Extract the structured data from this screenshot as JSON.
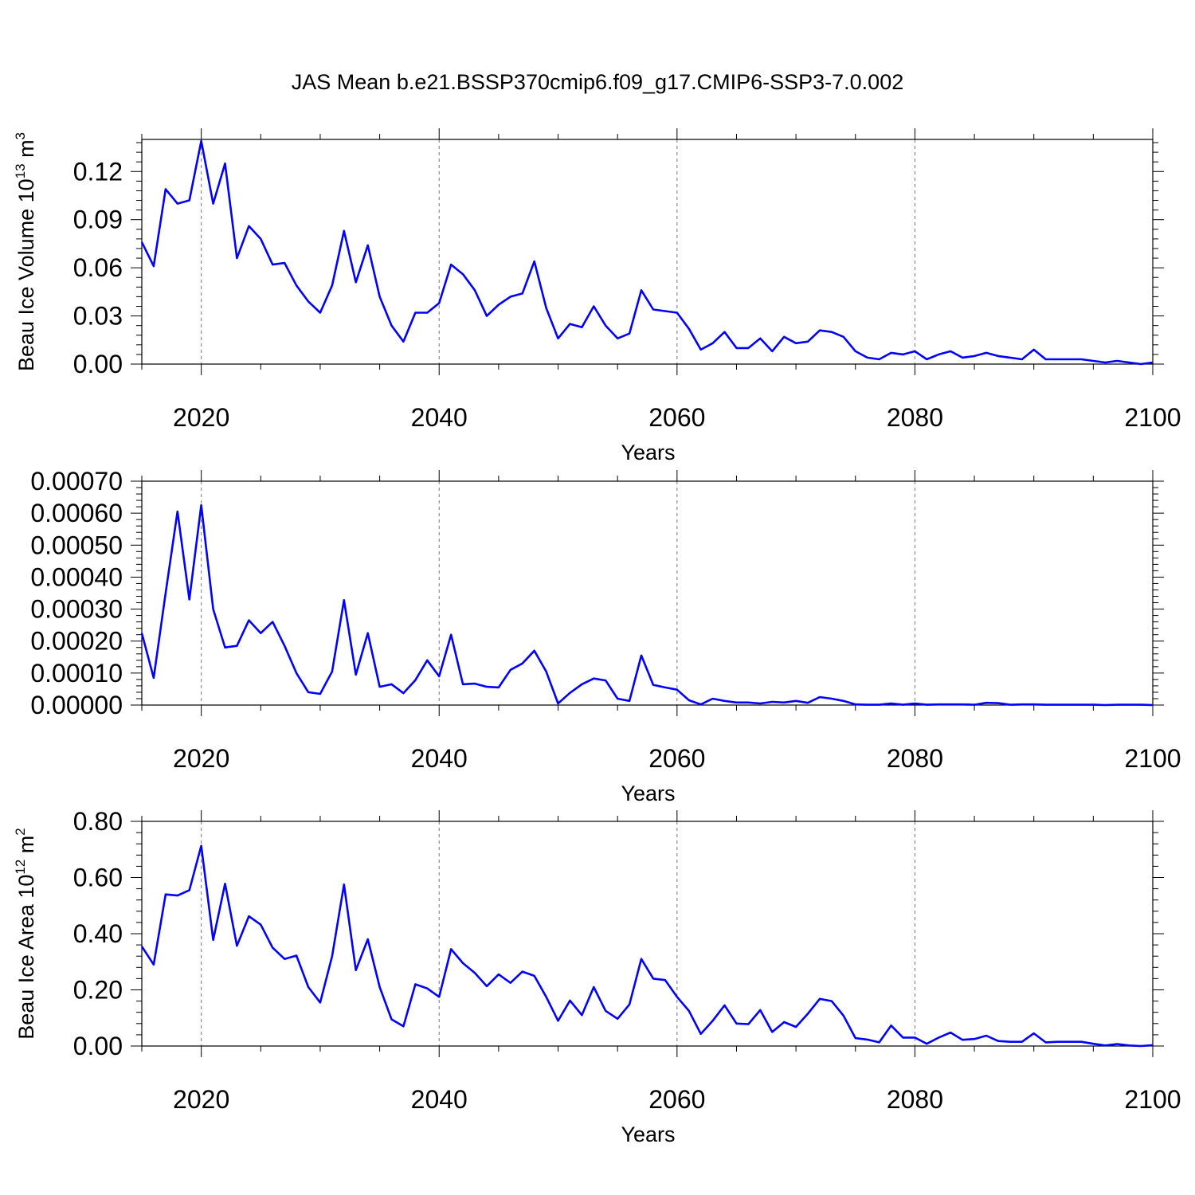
{
  "title": "JAS Mean b.e21.BSSP370cmip6.f09_g17.CMIP6-SSP3-7.0.002",
  "line_color": "#0000ff",
  "chart_data": [
    {
      "type": "line",
      "series_color": "#0000ff",
      "xlabel": "Years",
      "ylabel": "Beau Ice Volume 10",
      "ylabel_exponent": "13",
      "ylabel_unit": " m",
      "ylabel_unit_exponent": "3",
      "xlim": [
        2015,
        2100
      ],
      "ylim": [
        0.0,
        0.14
      ],
      "xticks": [
        2020,
        2040,
        2060,
        2080,
        2100
      ],
      "xtick_labels": [
        "2020",
        "2040",
        "2060",
        "2080",
        "2100"
      ],
      "yticks": [
        0.0,
        0.03,
        0.06,
        0.09,
        0.12
      ],
      "ytick_labels": [
        "0.00",
        "0.03",
        "0.06",
        "0.09",
        "0.12"
      ],
      "grid": "vertical dashed at major x ticks",
      "x": [
        2015,
        2016,
        2017,
        2018,
        2019,
        2020,
        2021,
        2022,
        2023,
        2024,
        2025,
        2026,
        2027,
        2028,
        2029,
        2030,
        2031,
        2032,
        2033,
        2034,
        2035,
        2036,
        2037,
        2038,
        2039,
        2040,
        2041,
        2042,
        2043,
        2044,
        2045,
        2046,
        2047,
        2048,
        2049,
        2050,
        2051,
        2052,
        2053,
        2054,
        2055,
        2056,
        2057,
        2058,
        2059,
        2060,
        2061,
        2062,
        2063,
        2064,
        2065,
        2066,
        2067,
        2068,
        2069,
        2070,
        2071,
        2072,
        2073,
        2074,
        2075,
        2076,
        2077,
        2078,
        2079,
        2080,
        2081,
        2082,
        2083,
        2084,
        2085,
        2086,
        2087,
        2088,
        2089,
        2090,
        2091,
        2092,
        2093,
        2094,
        2095,
        2096,
        2097,
        2098,
        2099,
        2100
      ],
      "y": [
        0.076,
        0.061,
        0.109,
        0.1,
        0.102,
        0.139,
        0.1,
        0.125,
        0.066,
        0.086,
        0.078,
        0.062,
        0.063,
        0.049,
        0.039,
        0.032,
        0.049,
        0.083,
        0.051,
        0.074,
        0.042,
        0.024,
        0.014,
        0.032,
        0.032,
        0.038,
        0.062,
        0.056,
        0.046,
        0.03,
        0.037,
        0.042,
        0.044,
        0.064,
        0.035,
        0.016,
        0.025,
        0.023,
        0.036,
        0.024,
        0.016,
        0.019,
        0.046,
        0.034,
        0.033,
        0.032,
        0.022,
        0.009,
        0.013,
        0.02,
        0.01,
        0.01,
        0.016,
        0.008,
        0.017,
        0.013,
        0.014,
        0.021,
        0.02,
        0.017,
        0.008,
        0.004,
        0.003,
        0.007,
        0.006,
        0.008,
        0.003,
        0.006,
        0.008,
        0.004,
        0.005,
        0.007,
        0.005,
        0.004,
        0.003,
        0.009,
        0.003,
        0.003,
        0.003,
        0.003,
        0.002,
        0.001,
        0.002,
        0.001,
        0.0,
        0.001
      ]
    },
    {
      "type": "line",
      "series_color": "#0000ff",
      "xlabel": "Years",
      "ylabel": "",
      "xlim": [
        2015,
        2100
      ],
      "ylim": [
        0.0,
        0.0007
      ],
      "xticks": [
        2020,
        2040,
        2060,
        2080,
        2100
      ],
      "xtick_labels": [
        "2020",
        "2040",
        "2060",
        "2080",
        "2100"
      ],
      "yticks": [
        0.0,
        0.0001,
        0.0002,
        0.0003,
        0.0004,
        0.0005,
        0.0006,
        0.0007
      ],
      "ytick_labels": [
        "0.00000",
        "0.00010",
        "0.00020",
        "0.00030",
        "0.00040",
        "0.00050",
        "0.00060",
        "0.00070"
      ],
      "grid": "vertical dashed at major x ticks",
      "x": [
        2015,
        2016,
        2017,
        2018,
        2019,
        2020,
        2021,
        2022,
        2023,
        2024,
        2025,
        2026,
        2027,
        2028,
        2029,
        2030,
        2031,
        2032,
        2033,
        2034,
        2035,
        2036,
        2037,
        2038,
        2039,
        2040,
        2041,
        2042,
        2043,
        2044,
        2045,
        2046,
        2047,
        2048,
        2049,
        2050,
        2051,
        2052,
        2053,
        2054,
        2055,
        2056,
        2057,
        2058,
        2059,
        2060,
        2061,
        2062,
        2063,
        2064,
        2065,
        2066,
        2067,
        2068,
        2069,
        2070,
        2071,
        2072,
        2073,
        2074,
        2075,
        2076,
        2077,
        2078,
        2079,
        2080,
        2081,
        2082,
        2083,
        2084,
        2085,
        2086,
        2087,
        2088,
        2089,
        2090,
        2091,
        2092,
        2093,
        2094,
        2095,
        2096,
        2097,
        2098,
        2099,
        2100
      ],
      "y": [
        0.000225,
        8.5e-05,
        0.00035,
        0.000605,
        0.00033,
        0.000625,
        0.0003,
        0.00018,
        0.000185,
        0.000265,
        0.000225,
        0.00026,
        0.000185,
        0.0001,
        4e-05,
        3.5e-05,
        0.000105,
        0.000328,
        9.5e-05,
        0.000225,
        5.7e-05,
        6.5e-05,
        3.7e-05,
        7.8e-05,
        0.00014,
        9e-05,
        0.00022,
        6.5e-05,
        6.7e-05,
        5.7e-05,
        5.5e-05,
        0.00011,
        0.00013,
        0.00017,
        0.000105,
        5e-06,
        3.8e-05,
        6.5e-05,
        8.3e-05,
        7.7e-05,
        2e-05,
        1.3e-05,
        0.000155,
        6.3e-05,
        5.5e-05,
        4.8e-05,
        1.5e-05,
        2e-06,
        2e-05,
        1.3e-05,
        8e-06,
        8e-06,
        5e-06,
        1e-05,
        8e-06,
        1.3e-05,
        7e-06,
        2.5e-05,
        2e-05,
        1.3e-05,
        2e-06,
        1e-06,
        1e-06,
        5e-06,
        1e-06,
        5e-06,
        1e-06,
        2e-06,
        2e-06,
        2e-06,
        1e-06,
        7e-06,
        6e-06,
        1e-06,
        2e-06,
        2e-06,
        1e-06,
        1e-06,
        1e-06,
        1e-06,
        1e-06,
        0.0,
        1e-06,
        1e-06,
        1e-06,
        0.0
      ]
    },
    {
      "type": "line",
      "series_color": "#0000ff",
      "xlabel": "Years",
      "ylabel": "Beau Ice Area 10",
      "ylabel_exponent": "12",
      "ylabel_unit": " m",
      "ylabel_unit_exponent": "2",
      "xlim": [
        2015,
        2100
      ],
      "ylim": [
        0.0,
        0.8
      ],
      "xticks": [
        2020,
        2040,
        2060,
        2080,
        2100
      ],
      "xtick_labels": [
        "2020",
        "2040",
        "2060",
        "2080",
        "2100"
      ],
      "yticks": [
        0.0,
        0.2,
        0.4,
        0.6,
        0.8
      ],
      "ytick_labels": [
        "0.00",
        "0.20",
        "0.40",
        "0.60",
        "0.80"
      ],
      "grid": "vertical dashed at major x ticks",
      "x": [
        2015,
        2016,
        2017,
        2018,
        2019,
        2020,
        2021,
        2022,
        2023,
        2024,
        2025,
        2026,
        2027,
        2028,
        2029,
        2030,
        2031,
        2032,
        2033,
        2034,
        2035,
        2036,
        2037,
        2038,
        2039,
        2040,
        2041,
        2042,
        2043,
        2044,
        2045,
        2046,
        2047,
        2048,
        2049,
        2050,
        2051,
        2052,
        2053,
        2054,
        2055,
        2056,
        2057,
        2058,
        2059,
        2060,
        2061,
        2062,
        2063,
        2064,
        2065,
        2066,
        2067,
        2068,
        2069,
        2070,
        2071,
        2072,
        2073,
        2074,
        2075,
        2076,
        2077,
        2078,
        2079,
        2080,
        2081,
        2082,
        2083,
        2084,
        2085,
        2086,
        2087,
        2088,
        2089,
        2090,
        2091,
        2092,
        2093,
        2094,
        2095,
        2096,
        2097,
        2098,
        2099,
        2100
      ],
      "y": [
        0.355,
        0.29,
        0.54,
        0.536,
        0.555,
        0.713,
        0.378,
        0.578,
        0.357,
        0.462,
        0.432,
        0.35,
        0.31,
        0.322,
        0.21,
        0.155,
        0.32,
        0.575,
        0.27,
        0.38,
        0.21,
        0.095,
        0.07,
        0.22,
        0.205,
        0.175,
        0.345,
        0.295,
        0.26,
        0.213,
        0.255,
        0.225,
        0.265,
        0.25,
        0.175,
        0.09,
        0.162,
        0.11,
        0.21,
        0.125,
        0.097,
        0.148,
        0.31,
        0.24,
        0.235,
        0.175,
        0.125,
        0.043,
        0.09,
        0.145,
        0.08,
        0.078,
        0.128,
        0.05,
        0.085,
        0.068,
        0.115,
        0.168,
        0.16,
        0.108,
        0.028,
        0.023,
        0.013,
        0.073,
        0.03,
        0.03,
        0.008,
        0.03,
        0.048,
        0.022,
        0.025,
        0.037,
        0.018,
        0.015,
        0.015,
        0.045,
        0.013,
        0.015,
        0.015,
        0.015,
        0.008,
        0.002,
        0.007,
        0.002,
        0.0,
        0.003
      ]
    }
  ]
}
